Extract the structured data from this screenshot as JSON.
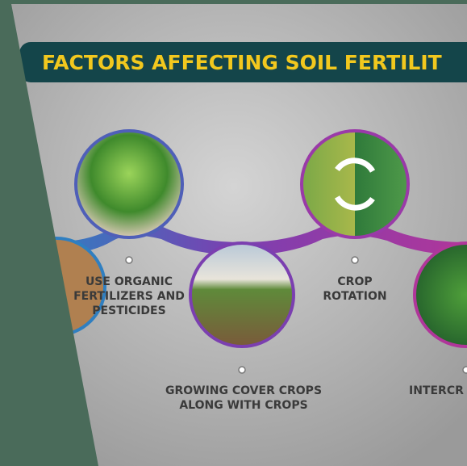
{
  "header": {
    "title": "FACTORS AFFECTING SOIL FERTILIT"
  },
  "items": [
    {
      "lines": [
        "USE ORGANIC",
        "FERTILIZERS AND",
        "PESTICIDES"
      ]
    },
    {
      "lines": [
        "CROP",
        "ROTATION"
      ]
    },
    {
      "lines": [
        "GROWING COVER CROPS",
        "ALONG WITH CROPS"
      ]
    },
    {
      "lines": [
        "INTERCR"
      ]
    }
  ]
}
